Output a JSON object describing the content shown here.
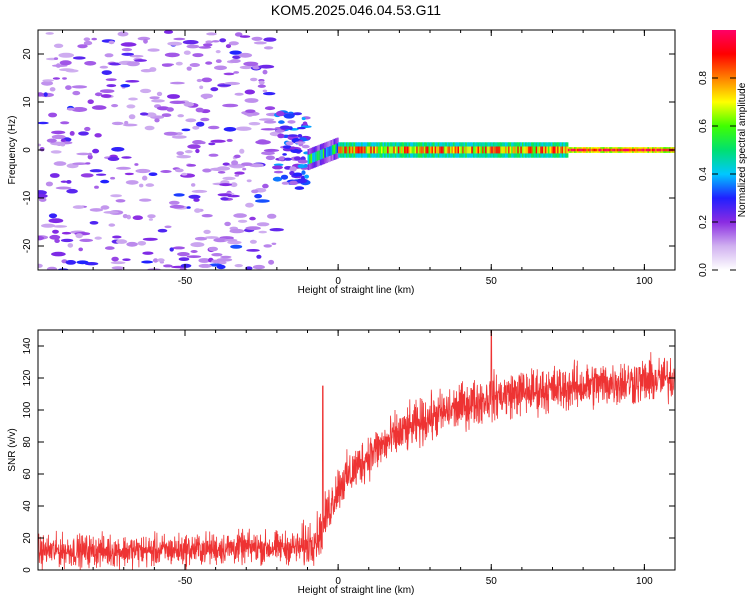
{
  "title": "KOM5.2025.046.04.53.G11",
  "chart_data": [
    {
      "type": "heatmap",
      "name": "spectrogram",
      "xlabel": "Height of straight line (km)",
      "ylabel": "Frequency (Hz)",
      "xlim": [
        -98,
        110
      ],
      "ylim": [
        -25,
        25
      ],
      "xticks": [
        -50,
        0,
        50,
        100
      ],
      "yticks": [
        -20,
        -10,
        0,
        10,
        20
      ],
      "colorbar": {
        "label": "Normalized spectral amplitude",
        "range": [
          0,
          1
        ],
        "ticks": [
          0.0,
          0.2,
          0.4,
          0.6,
          0.8
        ],
        "colors": [
          "#ffffff",
          "#d0b0f0",
          "#8a2be2",
          "#2020ff",
          "#00c8ff",
          "#00e070",
          "#40ff00",
          "#ffff00",
          "#ff8000",
          "#ff0000",
          "#ff0066"
        ]
      },
      "regions": [
        {
          "desc": "scattered noise",
          "x": [
            -98,
            -20
          ],
          "freq": [
            -25,
            25
          ],
          "amplitude": 0.1
        },
        {
          "desc": "broadband transition",
          "x": [
            -20,
            -10
          ],
          "freq": [
            -8,
            8
          ],
          "amplitude": 0.3
        },
        {
          "desc": "signal ridge",
          "x": [
            -10,
            0
          ],
          "freq_center": [
            -2,
            0.5
          ],
          "amplitude": 0.45
        },
        {
          "desc": "signal ridge",
          "x": [
            0,
            75
          ],
          "freq_center": 0,
          "amplitude": 0.75
        },
        {
          "desc": "signal ridge",
          "x": [
            75,
            110
          ],
          "freq_center": 0,
          "amplitude": 0.95
        }
      ]
    },
    {
      "type": "line",
      "name": "snr",
      "xlabel": "Height of straight line (km)",
      "ylabel": "SNR (v/v)",
      "xlim": [
        -98,
        110
      ],
      "ylim": [
        0,
        150
      ],
      "xticks": [
        -50,
        0,
        50,
        100
      ],
      "yticks": [
        0,
        20,
        40,
        60,
        80,
        100,
        120,
        140
      ],
      "color": "#ee3333",
      "trend": {
        "x": [
          -98,
          -60,
          -30,
          -12,
          -6,
          -3,
          0,
          5,
          10,
          20,
          30,
          40,
          50,
          60,
          70,
          80,
          90,
          100,
          110
        ],
        "y": [
          12,
          12,
          14,
          14,
          22,
          38,
          52,
          62,
          72,
          85,
          95,
          102,
          108,
          111,
          113,
          115,
          117,
          118,
          120
        ]
      },
      "noise_amplitude": [
        {
          "x": [
            -98,
            -12
          ],
          "amp": 7
        },
        {
          "x": [
            -12,
            110
          ],
          "amp": 10
        }
      ],
      "annotations": [
        {
          "x": -5,
          "y": 115,
          "desc": "spike"
        },
        {
          "x": 50,
          "y": 150,
          "desc": "peak"
        }
      ]
    }
  ]
}
